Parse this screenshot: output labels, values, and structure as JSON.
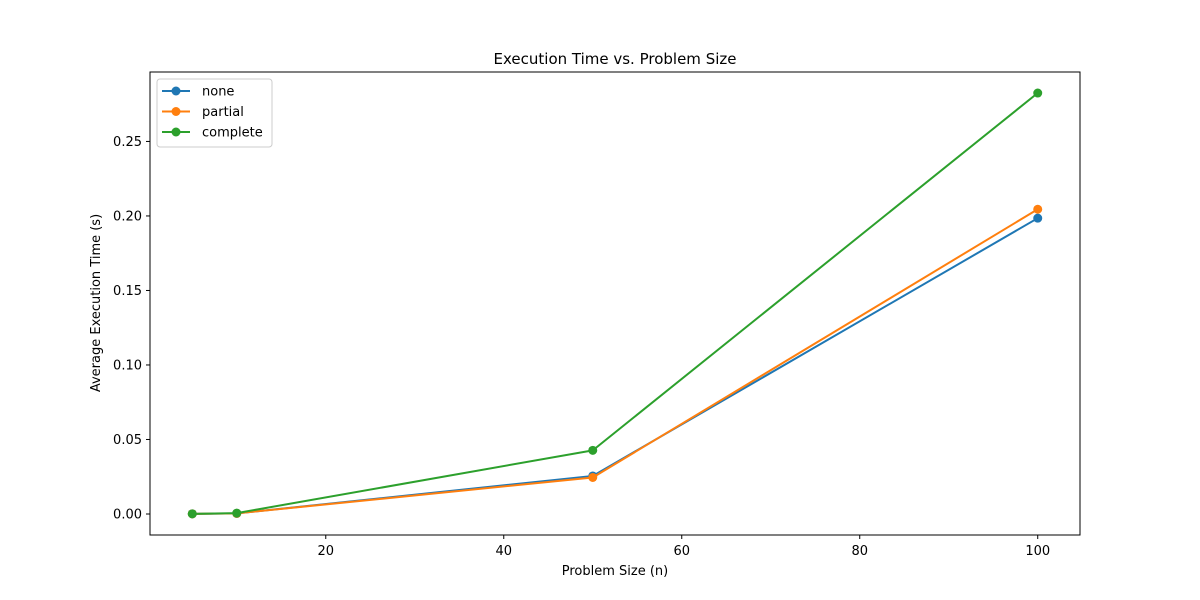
{
  "chart_data": {
    "type": "line",
    "title": "Execution Time vs. Problem Size",
    "xlabel": "Problem Size (n)",
    "ylabel": "Average Execution Time (s)",
    "x": [
      5,
      10,
      50,
      100
    ],
    "series": [
      {
        "name": "none",
        "color": "#1f77b4",
        "values": [
          0.0001,
          0.0004,
          0.0255,
          0.1985
        ]
      },
      {
        "name": "partial",
        "color": "#ff7f0e",
        "values": [
          0.0001,
          0.0004,
          0.0245,
          0.2045
        ]
      },
      {
        "name": "complete",
        "color": "#2ca02c",
        "values": [
          0.0001,
          0.0006,
          0.0427,
          0.2825
        ]
      }
    ],
    "xlim": [
      0.25,
      104.75
    ],
    "ylim": [
      -0.0141,
      0.2966
    ],
    "xticks": [
      20,
      40,
      60,
      80,
      100
    ],
    "xtick_labels": [
      "20",
      "40",
      "60",
      "80",
      "100"
    ],
    "yticks": [
      0.0,
      0.05,
      0.1,
      0.15,
      0.2,
      0.25
    ],
    "ytick_labels": [
      "0.00",
      "0.05",
      "0.10",
      "0.15",
      "0.20",
      "0.25"
    ],
    "grid": false,
    "legend_position": "top-left",
    "marker": "circle"
  }
}
